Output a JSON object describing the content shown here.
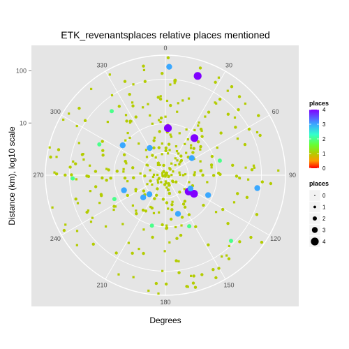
{
  "chart_data": {
    "type": "scatter",
    "coord": "polar",
    "title": "ETK_revenantsplaces relative places mentioned",
    "xlabel": "Degrees",
    "ylabel": "Distance (km), log10 scale",
    "angle_ticks": [
      "0",
      "30",
      "60",
      "90",
      "120",
      "150",
      "180",
      "210",
      "240",
      "270",
      "300",
      "330"
    ],
    "radial_ticks": [
      {
        "label": "10",
        "value": 10
      },
      {
        "label": "100",
        "value": 100
      }
    ],
    "radial_scale": "log10",
    "grid": true,
    "legend": {
      "position": "right",
      "color_title": "places",
      "color_ticks": [
        "4",
        "3",
        "2",
        "1",
        "0"
      ],
      "color_stops": [
        {
          "value": 4,
          "color": "#8000ff"
        },
        {
          "value": 3,
          "color": "#3aa8ff"
        },
        {
          "value": 2.3,
          "color": "#33ffcc"
        },
        {
          "value": 1.6,
          "color": "#66ff33"
        },
        {
          "value": 1,
          "color": "#b3cc00"
        },
        {
          "value": 0.5,
          "color": "#ff9900"
        },
        {
          "value": 0,
          "color": "#ff0000"
        }
      ],
      "size_title": "places",
      "size_ticks": [
        "0",
        "1",
        "2",
        "3",
        "4"
      ],
      "size_values": [
        0,
        1,
        2,
        3,
        4
      ]
    },
    "highlight_points": [
      {
        "angle": 2,
        "distance": 120,
        "places": 3
      },
      {
        "angle": 18,
        "distance": 100,
        "places": 4
      },
      {
        "angle": 3,
        "distance": 8,
        "places": 4
      },
      {
        "angle": 38,
        "distance": 8,
        "places": 4
      },
      {
        "angle": 123,
        "distance": 4.5,
        "places": 4
      },
      {
        "angle": 125,
        "distance": 3.5,
        "places": 4
      },
      {
        "angle": 115,
        "distance": 8,
        "places": 3
      },
      {
        "angle": 118,
        "distance": 3.5,
        "places": 3
      },
      {
        "angle": 162,
        "distance": 6,
        "places": 3
      },
      {
        "angle": 220,
        "distance": 3,
        "places": 3
      },
      {
        "angle": 225,
        "distance": 4,
        "places": 3
      },
      {
        "angle": 250,
        "distance": 7,
        "places": 3
      },
      {
        "angle": 305,
        "distance": 10,
        "places": 3
      },
      {
        "angle": 330,
        "distance": 4,
        "places": 3
      },
      {
        "angle": 57,
        "distance": 4,
        "places": 3
      },
      {
        "angle": 98,
        "distance": 60,
        "places": 3
      },
      {
        "angle": 135,
        "distance": 60,
        "places": 2
      },
      {
        "angle": 268,
        "distance": 60,
        "places": 2
      },
      {
        "angle": 295,
        "distance": 25,
        "places": 2
      },
      {
        "angle": 195,
        "distance": 10,
        "places": 2
      },
      {
        "angle": 320,
        "distance": 40,
        "places": 2
      },
      {
        "angle": 75,
        "distance": 12,
        "places": 2
      },
      {
        "angle": 155,
        "distance": 12,
        "places": 2
      },
      {
        "angle": 245,
        "distance": 12,
        "places": 2
      }
    ],
    "background_points": {
      "count": 360,
      "places": 1,
      "angle_range": [
        0,
        360
      ],
      "distance_range": [
        1,
        200
      ]
    }
  }
}
